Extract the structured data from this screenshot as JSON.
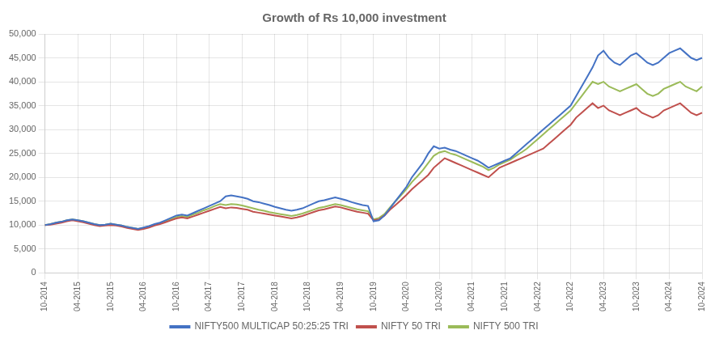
{
  "chart_data": {
    "type": "line",
    "title": "Growth of Rs 10,000 investment",
    "categories": [
      "10-2014",
      null,
      null,
      null,
      null,
      null,
      "04-2015",
      null,
      null,
      null,
      null,
      null,
      "10-2015",
      null,
      null,
      null,
      null,
      null,
      "04-2016",
      null,
      null,
      null,
      null,
      null,
      "10-2016",
      null,
      null,
      null,
      null,
      null,
      "04-2017",
      null,
      null,
      null,
      null,
      null,
      "10-2017",
      null,
      null,
      null,
      null,
      null,
      "04-2018",
      null,
      null,
      null,
      null,
      null,
      "10-2018",
      null,
      null,
      null,
      null,
      null,
      "04-2019",
      null,
      null,
      null,
      null,
      null,
      "10-2019",
      null,
      null,
      null,
      null,
      null,
      "04-2020",
      null,
      null,
      null,
      null,
      null,
      "10-2020",
      null,
      null,
      null,
      null,
      null,
      "04-2021",
      null,
      null,
      null,
      null,
      null,
      "10-2021",
      null,
      null,
      null,
      null,
      null,
      "04-2022",
      null,
      null,
      null,
      null,
      null,
      "10-2022",
      null,
      null,
      null,
      null,
      null,
      "04-2023",
      null,
      null,
      null,
      null,
      null,
      "10-2023",
      null,
      null,
      null,
      null,
      null,
      "04-2024",
      null,
      null,
      null,
      null,
      null,
      "10-2024"
    ],
    "series": [
      {
        "name": "NIFTY500 MULTICAP 50:25:25 TRI",
        "color": "#4472C4",
        "values": [
          10000,
          10200,
          10500,
          10700,
          11000,
          11200,
          11000,
          10800,
          10500,
          10200,
          10000,
          10100,
          10300,
          10100,
          9900,
          9600,
          9400,
          9200,
          9500,
          9800,
          10200,
          10500,
          11000,
          11500,
          12000,
          12200,
          12000,
          12500,
          13000,
          13500,
          14000,
          14500,
          15000,
          16000,
          16200,
          16000,
          15800,
          15500,
          15000,
          14800,
          14500,
          14200,
          13800,
          13500,
          13200,
          13000,
          13200,
          13500,
          14000,
          14500,
          15000,
          15200,
          15500,
          15800,
          15500,
          15200,
          14800,
          14500,
          14200,
          14000,
          10800,
          11000,
          12000,
          13500,
          15000,
          16500,
          18000,
          20000,
          21500,
          23000,
          25000,
          26500,
          26000,
          26200,
          25800,
          25500,
          25000,
          24500,
          24000,
          23500,
          22800,
          22000,
          22500,
          23000,
          23500,
          24000,
          25000,
          26000,
          27000,
          28000,
          29000,
          30000,
          31000,
          32000,
          33000,
          34000,
          35000,
          37000,
          39000,
          41000,
          43000,
          45500,
          46500,
          45000,
          44000,
          43500,
          44500,
          45500,
          46000,
          45000,
          44000,
          43500,
          44000,
          45000,
          46000,
          46500,
          47000,
          46000,
          45000,
          44500,
          45000
        ]
      },
      {
        "name": "NIFTY 50 TRI",
        "color": "#C0504D",
        "values": [
          10000,
          10100,
          10300,
          10500,
          10800,
          11000,
          10800,
          10600,
          10300,
          10000,
          9800,
          9900,
          10000,
          9900,
          9700,
          9400,
          9200,
          9000,
          9200,
          9500,
          9900,
          10200,
          10600,
          11000,
          11400,
          11600,
          11400,
          11800,
          12200,
          12600,
          13000,
          13400,
          13800,
          13500,
          13700,
          13600,
          13400,
          13200,
          12800,
          12600,
          12400,
          12200,
          12000,
          11800,
          11600,
          11400,
          11600,
          11900,
          12300,
          12700,
          13100,
          13300,
          13600,
          13900,
          13700,
          13400,
          13100,
          12800,
          12600,
          12400,
          11000,
          11200,
          12000,
          13200,
          14200,
          15200,
          16300,
          17500,
          18500,
          19500,
          20500,
          22000,
          23000,
          24000,
          23500,
          23000,
          22500,
          22000,
          21500,
          21000,
          20500,
          20000,
          21000,
          22000,
          22500,
          23000,
          23500,
          24000,
          24500,
          25000,
          25500,
          26000,
          27000,
          28000,
          29000,
          30000,
          31000,
          32500,
          33500,
          34500,
          35500,
          34500,
          35000,
          34000,
          33500,
          33000,
          33500,
          34000,
          34500,
          33500,
          33000,
          32500,
          33000,
          34000,
          34500,
          35000,
          35500,
          34500,
          33500,
          33000,
          33500
        ]
      },
      {
        "name": "NIFTY 500 TRI",
        "color": "#9BBB59",
        "values": [
          10000,
          10200,
          10500,
          10700,
          11000,
          11200,
          11000,
          10800,
          10500,
          10200,
          10000,
          10100,
          10300,
          10100,
          9900,
          9600,
          9400,
          9200,
          9400,
          9700,
          10100,
          10400,
          10800,
          11200,
          11700,
          11900,
          11700,
          12200,
          12600,
          13100,
          13500,
          14000,
          14400,
          14200,
          14400,
          14300,
          14100,
          13800,
          13500,
          13200,
          13000,
          12700,
          12500,
          12300,
          12100,
          11900,
          12100,
          12400,
          12800,
          13200,
          13600,
          13800,
          14100,
          14400,
          14200,
          13900,
          13600,
          13300,
          13100,
          12900,
          11200,
          11500,
          12300,
          13700,
          15000,
          16200,
          17500,
          19000,
          20200,
          21500,
          23000,
          24500,
          25200,
          25500,
          25000,
          24700,
          24200,
          23700,
          23200,
          22700,
          22200,
          21500,
          22000,
          22700,
          23200,
          23700,
          24500,
          25200,
          26000,
          27000,
          28000,
          29000,
          30000,
          31000,
          32000,
          33000,
          34000,
          35500,
          37000,
          38500,
          40000,
          39500,
          40000,
          39000,
          38500,
          38000,
          38500,
          39000,
          39500,
          38500,
          37500,
          37000,
          37500,
          38500,
          39000,
          39500,
          40000,
          39000,
          38500,
          38000,
          39000
        ]
      }
    ],
    "ylim": [
      0,
      50000
    ],
    "yticks": [
      0,
      {
        "value": 5000,
        "label": "5,000"
      },
      {
        "value": 10000,
        "label": "10,000"
      },
      {
        "value": 15000,
        "label": "15,000"
      },
      {
        "value": 20000,
        "label": "20,000"
      },
      {
        "value": 25000,
        "label": "25,000"
      },
      {
        "value": 30000,
        "label": "30,000"
      },
      {
        "value": 35000,
        "label": "35,000"
      },
      {
        "value": 40000,
        "label": "40,000"
      },
      {
        "value": 45000,
        "label": "45,000"
      },
      {
        "value": 50000,
        "label": "50,000"
      }
    ],
    "grid": true,
    "legend": "bottom"
  }
}
